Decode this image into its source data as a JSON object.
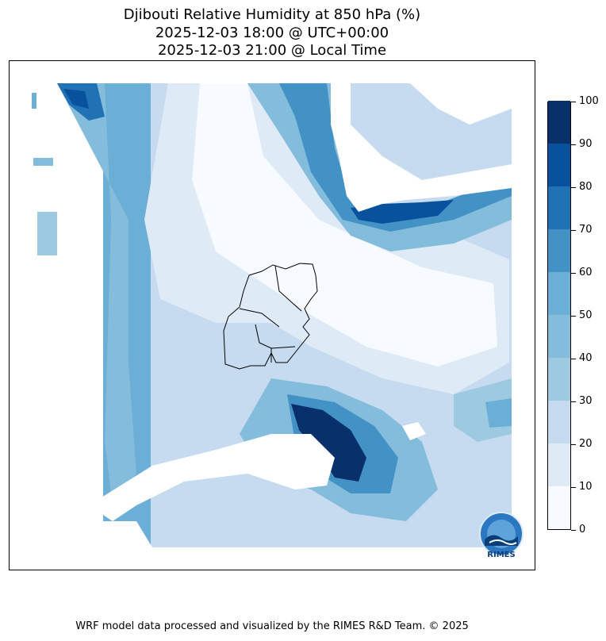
{
  "title": {
    "line1": "Djibouti Relative Humidity at 850 hPa (%)",
    "line2": "2025-12-03 18:00 @ UTC+00:00",
    "line3": "2025-12-03 21:00 @ Local Time"
  },
  "colorbar": {
    "labels": [
      "0",
      "10",
      "20",
      "30",
      "40",
      "50",
      "60",
      "70",
      "80",
      "90",
      "100"
    ],
    "colors": [
      "#f7fbff",
      "#deebf7",
      "#c6dbef",
      "#9ecae1",
      "#84bcdc",
      "#6baed6",
      "#4292c6",
      "#2171b5",
      "#08519c",
      "#08306b"
    ]
  },
  "logo": {
    "text": "RIMES"
  },
  "footer": "WRF model data processed and visualized by the RIMES R&D Team. © 2025"
}
